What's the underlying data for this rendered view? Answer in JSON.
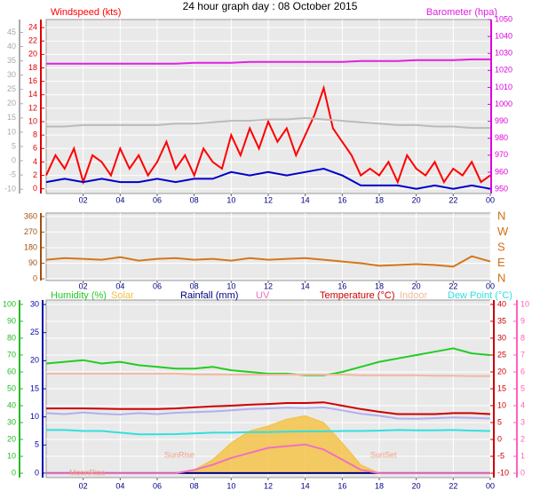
{
  "chart_data": [
    {
      "type": "line",
      "title": "24 hour graph day : 08 October 2015",
      "grid": true,
      "x": [
        0,
        1,
        2,
        3,
        4,
        5,
        6,
        7,
        8,
        9,
        10,
        11,
        12,
        13,
        14,
        15,
        16,
        17,
        18,
        19,
        20,
        21,
        22,
        23,
        24
      ],
      "xlim": [
        0,
        24
      ],
      "xticks": [
        {
          "value": 2,
          "label": "02"
        },
        {
          "value": 4,
          "label": "04"
        },
        {
          "value": 6,
          "label": "06"
        },
        {
          "value": 8,
          "label": "08"
        },
        10,
        12,
        14,
        16,
        18,
        20,
        22,
        {
          "value": 24,
          "label": "00"
        }
      ],
      "axes": [
        {
          "ylim": [
            -0.7,
            25.2
          ],
          "yticks": [
            0,
            2,
            4,
            6,
            8,
            10,
            12,
            14,
            16,
            18,
            20,
            22,
            24
          ],
          "color": "#dd0000",
          "side": "left"
        },
        {
          "ylim": [
            -11.5,
            49.5
          ],
          "yticks": [
            -10,
            -5,
            0,
            5,
            10,
            15,
            20,
            25,
            30,
            35,
            40,
            45
          ],
          "color": "#aaaaaa",
          "side": "left"
        },
        {
          "ylim": [
            947.4,
            1050
          ],
          "yticks": [
            950,
            960,
            970,
            980,
            990,
            1000,
            1010,
            1020,
            1030,
            1040,
            1050
          ],
          "color": "#dd00dd",
          "side": "right"
        }
      ],
      "series": [
        {
          "name": "Windspeed (kts)",
          "color": "#ff0000",
          "axis": 0,
          "style": "line",
          "x": [
            0,
            0.5,
            1,
            1.5,
            2,
            2.5,
            3,
            3.5,
            4,
            4.5,
            5,
            5.5,
            6,
            6.5,
            7,
            7.5,
            8,
            8.5,
            9,
            9.5,
            10,
            10.5,
            11,
            11.5,
            12,
            12.5,
            13,
            13.5,
            14,
            14.5,
            15,
            15.5,
            16,
            16.5,
            17,
            17.5,
            18,
            18.5,
            19,
            19.5,
            20,
            20.5,
            21,
            21.5,
            22,
            22.5,
            23,
            23.5,
            24
          ],
          "values": [
            2,
            5,
            3,
            6,
            1,
            5,
            4,
            2,
            6,
            3,
            5,
            2,
            4,
            7,
            3,
            5,
            2,
            6,
            4,
            3,
            8,
            5,
            9,
            6,
            10,
            7,
            9,
            5,
            8,
            11,
            15,
            9,
            7,
            5,
            2,
            3,
            2,
            4,
            1,
            5,
            3,
            2,
            4,
            1,
            3,
            2,
            4,
            1,
            2
          ]
        },
        {
          "color": "#0000cc",
          "axis": 0,
          "style": "line",
          "values": [
            1,
            1.5,
            1,
            1.5,
            1,
            1,
            1.5,
            1,
            1.5,
            1.5,
            2.5,
            2,
            2.5,
            2,
            2.5,
            3,
            2,
            0.5,
            0.5,
            0.5,
            0,
            0.5,
            0,
            0.5,
            0
          ]
        },
        {
          "color": "#bbbbbb",
          "axis": 1,
          "style": "line",
          "values": [
            12,
            12,
            12.5,
            12.5,
            12.5,
            12.5,
            12.5,
            13,
            13,
            13.5,
            14,
            14,
            14.5,
            14.5,
            15,
            14.5,
            14,
            13.5,
            13,
            12.5,
            12.5,
            12,
            12,
            11.5,
            11.5
          ]
        },
        {
          "name": "Barometer (hpa)",
          "color": "#e020e0",
          "axis": 2,
          "style": "line",
          "values": [
            1024,
            1024,
            1024,
            1024,
            1024,
            1024,
            1024,
            1024,
            1024.5,
            1024.5,
            1024.5,
            1025,
            1025,
            1025,
            1025,
            1025,
            1025,
            1025.5,
            1025.5,
            1025.5,
            1026,
            1026,
            1026,
            1026.5,
            1026.5
          ]
        }
      ]
    },
    {
      "type": "line",
      "grid": true,
      "x": [
        0,
        1,
        2,
        3,
        4,
        5,
        6,
        7,
        8,
        9,
        10,
        11,
        12,
        13,
        14,
        15,
        16,
        17,
        18,
        19,
        20,
        21,
        22,
        23,
        24
      ],
      "xlim": [
        0,
        24
      ],
      "xticks": [
        {
          "value": 2,
          "label": "02"
        },
        {
          "value": 4,
          "label": "04"
        },
        {
          "value": 6,
          "label": "06"
        },
        {
          "value": 8,
          "label": "08"
        },
        10,
        12,
        14,
        16,
        18,
        20,
        22,
        {
          "value": 24,
          "label": "00"
        }
      ],
      "axes": [
        {
          "ylim": [
            -10,
            380
          ],
          "yticks": [
            0,
            90,
            180,
            270,
            360
          ],
          "color": "#a05010",
          "side": "left"
        },
        {
          "ylim": [
            -10,
            380
          ],
          "yticks": [
            {
              "value": 360,
              "label": "N"
            },
            {
              "value": 270,
              "label": "W"
            },
            {
              "value": 180,
              "label": "S"
            },
            {
              "value": 90,
              "label": "E"
            },
            {
              "value": 0,
              "label": "N"
            }
          ],
          "color": "#d07010",
          "side": "right"
        }
      ],
      "series": [
        {
          "color": "#d4761c",
          "axis": 0,
          "style": "line",
          "values": [
            110,
            120,
            115,
            110,
            125,
            105,
            115,
            120,
            110,
            115,
            105,
            120,
            110,
            115,
            120,
            110,
            100,
            90,
            75,
            80,
            85,
            80,
            70,
            130,
            100
          ]
        }
      ]
    },
    {
      "type": "line",
      "grid": true,
      "x": [
        0,
        1,
        2,
        3,
        4,
        5,
        6,
        7,
        8,
        9,
        10,
        11,
        12,
        13,
        14,
        15,
        16,
        17,
        18,
        19,
        20,
        21,
        22,
        23,
        24
      ],
      "xlim": [
        0,
        24
      ],
      "xticks": [
        {
          "value": 2,
          "label": "02"
        },
        {
          "value": 4,
          "label": "04"
        },
        {
          "value": 6,
          "label": "06"
        },
        {
          "value": 8,
          "label": "08"
        },
        10,
        12,
        14,
        16,
        18,
        20,
        22,
        {
          "value": 24,
          "label": "00"
        }
      ],
      "axes": [
        {
          "ylim": [
            -2.6,
            102.6
          ],
          "yticks": [
            0,
            10,
            20,
            30,
            40,
            50,
            60,
            70,
            80,
            90,
            100
          ],
          "color": "#22bb22",
          "side": "left"
        },
        {
          "ylim": [
            -0.8,
            30.8
          ],
          "yticks": [
            0,
            5,
            10,
            15,
            20,
            25,
            30
          ],
          "color": "#0000aa",
          "side": "left"
        },
        {
          "ylim": [
            -11.3,
            41.3
          ],
          "yticks": [
            -10,
            -5,
            0,
            5,
            10,
            15,
            20,
            25,
            30,
            35,
            40
          ],
          "color": "#cc0000",
          "side": "right"
        },
        {
          "ylim": [
            -0.26,
            10.26
          ],
          "yticks": [
            0,
            1,
            2,
            3,
            4,
            5,
            6,
            7,
            8,
            9,
            10
          ],
          "color": "#ff60c0",
          "side": "right"
        }
      ],
      "series": [
        {
          "name": "Solar",
          "color": "#f5c040",
          "axis": 0,
          "style": "area",
          "values": [
            0,
            0,
            0,
            0,
            0,
            0,
            0,
            0,
            2,
            8,
            18,
            25,
            28,
            32,
            34,
            30,
            18,
            5,
            0,
            0,
            0,
            0,
            0,
            0,
            0
          ]
        },
        {
          "name": "Humidity (%)",
          "color": "#22cc22",
          "axis": 0,
          "style": "line",
          "values": [
            65,
            66,
            67,
            65,
            66,
            64,
            63,
            62,
            62,
            63,
            61,
            60,
            59,
            59,
            58,
            58,
            60,
            63,
            66,
            68,
            70,
            72,
            74,
            71,
            70
          ]
        },
        {
          "name": "Rainfall (mm)",
          "color": "#000080",
          "axis": 1,
          "style": "line",
          "values": [
            0,
            0,
            0,
            0,
            0,
            0,
            0,
            0,
            0,
            0,
            0,
            0,
            0,
            0,
            0,
            0,
            0,
            0,
            0,
            0,
            0,
            0,
            0,
            0,
            0
          ]
        },
        {
          "name": "UV",
          "color": "#f070c0",
          "axis": 3,
          "style": "line",
          "values": [
            0,
            0,
            0,
            0,
            0,
            0,
            0,
            0,
            0.2,
            0.5,
            0.9,
            1.2,
            1.5,
            1.6,
            1.7,
            1.4,
            0.8,
            0.2,
            0,
            0,
            0,
            0,
            0,
            0,
            0
          ]
        },
        {
          "name": "Indoor",
          "color": "#f0b8a0",
          "axis": 2,
          "style": "line",
          "values": [
            19.5,
            19.5,
            19.5,
            19.5,
            19.5,
            19.5,
            19.5,
            19.5,
            19.3,
            19.3,
            19.2,
            19.2,
            19.2,
            19.2,
            19.2,
            19.2,
            19.2,
            19,
            19,
            19,
            19,
            18.9,
            18.9,
            18.8,
            18.8
          ]
        },
        {
          "color": "#b0b0f0",
          "axis": 2,
          "style": "line",
          "values": [
            7.8,
            7.5,
            8,
            7.6,
            7.4,
            7.8,
            7.5,
            7.9,
            8.1,
            8.3,
            8.6,
            9,
            9.2,
            9.4,
            9.3,
            9.5,
            8.6,
            7.6,
            7,
            6.2,
            6.1,
            6.3,
            6.5,
            6.4,
            6.2
          ]
        },
        {
          "name": "Temperature (°C)",
          "color": "#cc0000",
          "axis": 2,
          "style": "line",
          "values": [
            9.2,
            9.2,
            9.2,
            9.1,
            9,
            9,
            9,
            9.2,
            9.5,
            9.8,
            10,
            10.3,
            10.5,
            10.8,
            10.8,
            11,
            10,
            9,
            8.2,
            7.5,
            7.5,
            7.5,
            7.8,
            7.8,
            7.5
          ]
        },
        {
          "name": "Dew Point (°C)",
          "color": "#30e0e0",
          "axis": 2,
          "style": "line",
          "values": [
            2.8,
            2.8,
            2.5,
            2.5,
            2,
            1.5,
            1.5,
            1.6,
            1.8,
            2,
            2,
            2.2,
            2.2,
            2.3,
            2.4,
            2.4,
            2.5,
            2.5,
            2.6,
            2.8,
            2.7,
            2.7,
            2.8,
            2.6,
            2.5
          ]
        }
      ],
      "annotations": [
        "MoonRise",
        "SunRise",
        "SunSet"
      ]
    }
  ]
}
